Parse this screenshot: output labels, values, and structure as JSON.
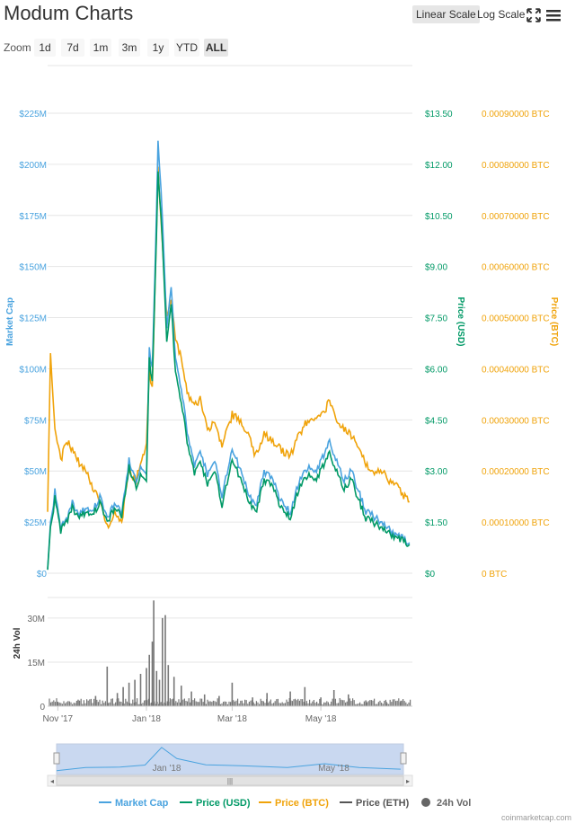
{
  "header": {
    "title": "Modum Charts",
    "linear_scale_label": "Linear Scale",
    "log_scale_label": "Log Scale",
    "selected_scale": "Linear Scale"
  },
  "zoom": {
    "label": "Zoom",
    "options": [
      "1d",
      "7d",
      "1m",
      "3m",
      "1y",
      "YTD",
      "ALL"
    ],
    "selected": "ALL"
  },
  "credit": "coinmarketcap.com",
  "colors": {
    "market_cap": "#4aa3df",
    "price_usd": "#009966",
    "price_btc": "#f0a30a",
    "price_eth": "#555555",
    "volume": "#777777",
    "grid": "#e6e6e6",
    "navigator_fill": "#c9d8f0"
  },
  "chart_data": [
    {
      "type": "line",
      "title": "",
      "x_type": "date",
      "xlim": [
        "2017-10-25",
        "2018-07-03"
      ],
      "x_tick_labels": [
        "Nov '17",
        "Jan '18",
        "Mar '18",
        "May '18"
      ],
      "x_ticks": [
        "2017-11-01",
        "2018-01-01",
        "2018-03-01",
        "2018-05-01"
      ],
      "grid": true,
      "legend": "bottom",
      "axes": {
        "market_cap": {
          "label": "Market Cap",
          "side": "left",
          "range": [
            0,
            225000000
          ],
          "tick_labels": [
            "$0",
            "$25M",
            "$50M",
            "$75M",
            "$100M",
            "$125M",
            "$150M",
            "$175M",
            "$200M",
            "$225M"
          ]
        },
        "price_usd": {
          "label": "Price (USD)",
          "side": "right",
          "range": [
            0,
            13.5
          ],
          "tick_labels": [
            "$0",
            "$1.50",
            "$3.00",
            "$4.50",
            "$6.00",
            "$7.50",
            "$9.00",
            "$10.50",
            "$12.00",
            "$13.50"
          ]
        },
        "price_btc": {
          "label": "Price (BTC)",
          "side": "right",
          "range": [
            0,
            0.0009
          ],
          "tick_labels": [
            "0 BTC",
            "0.00010000 BTC",
            "0.00020000 BTC",
            "0.00030000 BTC",
            "0.00040000 BTC",
            "0.00050000 BTC",
            "0.00060000 BTC",
            "0.00070000 BTC",
            "0.00080000 BTC",
            "0.00090000 BTC"
          ]
        }
      },
      "series": [
        {
          "name": "Market Cap",
          "axis": "market_cap",
          "x": [
            "2017-10-25",
            "2017-10-27",
            "2017-10-30",
            "2017-11-03",
            "2017-11-07",
            "2017-11-11",
            "2017-11-15",
            "2017-11-20",
            "2017-11-25",
            "2017-11-30",
            "2017-12-05",
            "2017-12-10",
            "2017-12-15",
            "2017-12-20",
            "2017-12-25",
            "2017-12-28",
            "2018-01-01",
            "2018-01-03",
            "2018-01-05",
            "2018-01-07",
            "2018-01-09",
            "2018-01-12",
            "2018-01-15",
            "2018-01-18",
            "2018-01-21",
            "2018-01-25",
            "2018-01-29",
            "2018-02-03",
            "2018-02-07",
            "2018-02-12",
            "2018-02-17",
            "2018-02-22",
            "2018-03-01",
            "2018-03-06",
            "2018-03-12",
            "2018-03-17",
            "2018-03-23",
            "2018-03-29",
            "2018-04-04",
            "2018-04-10",
            "2018-04-16",
            "2018-04-22",
            "2018-04-28",
            "2018-05-03",
            "2018-05-07",
            "2018-05-12",
            "2018-05-17",
            "2018-05-22",
            "2018-05-27",
            "2018-06-01",
            "2018-06-06",
            "2018-06-12",
            "2018-06-17",
            "2018-06-22",
            "2018-06-27",
            "2018-07-01"
          ],
          "values": [
            2000000,
            24000000,
            40000000,
            22000000,
            26000000,
            35000000,
            28000000,
            32000000,
            30000000,
            38000000,
            27000000,
            34000000,
            30000000,
            55000000,
            45000000,
            52000000,
            50000000,
            110000000,
            100000000,
            150000000,
            210000000,
            175000000,
            120000000,
            140000000,
            105000000,
            90000000,
            70000000,
            52000000,
            60000000,
            48000000,
            55000000,
            38000000,
            60000000,
            52000000,
            40000000,
            32000000,
            50000000,
            45000000,
            35000000,
            30000000,
            45000000,
            52000000,
            50000000,
            58000000,
            64000000,
            55000000,
            45000000,
            50000000,
            40000000,
            30000000,
            28000000,
            25000000,
            22000000,
            18000000,
            17000000,
            15000000
          ]
        },
        {
          "name": "Price (USD)",
          "axis": "price_usd",
          "x": [
            "2017-10-25",
            "2017-10-27",
            "2017-10-30",
            "2017-11-03",
            "2017-11-07",
            "2017-11-11",
            "2017-11-15",
            "2017-11-20",
            "2017-11-25",
            "2017-11-30",
            "2017-12-05",
            "2017-12-10",
            "2017-12-15",
            "2017-12-20",
            "2017-12-25",
            "2017-12-28",
            "2018-01-01",
            "2018-01-03",
            "2018-01-05",
            "2018-01-07",
            "2018-01-09",
            "2018-01-12",
            "2018-01-15",
            "2018-01-18",
            "2018-01-21",
            "2018-01-25",
            "2018-01-29",
            "2018-02-03",
            "2018-02-07",
            "2018-02-12",
            "2018-02-17",
            "2018-02-22",
            "2018-03-01",
            "2018-03-06",
            "2018-03-12",
            "2018-03-17",
            "2018-03-23",
            "2018-03-29",
            "2018-04-04",
            "2018-04-10",
            "2018-04-16",
            "2018-04-22",
            "2018-04-28",
            "2018-05-03",
            "2018-05-07",
            "2018-05-12",
            "2018-05-17",
            "2018-05-22",
            "2018-05-27",
            "2018-06-01",
            "2018-06-06",
            "2018-06-12",
            "2018-06-17",
            "2018-06-22",
            "2018-06-27",
            "2018-07-01"
          ],
          "values": [
            0.1,
            1.3,
            2.2,
            1.25,
            1.5,
            1.95,
            1.6,
            1.8,
            1.7,
            2.1,
            1.5,
            1.9,
            1.7,
            3.1,
            2.5,
            2.9,
            2.8,
            6.3,
            5.6,
            8.5,
            11.7,
            9.8,
            6.8,
            7.9,
            5.9,
            5.0,
            3.9,
            2.9,
            3.3,
            2.6,
            3.0,
            2.0,
            3.3,
            2.85,
            2.2,
            1.75,
            2.75,
            2.5,
            1.9,
            1.65,
            2.5,
            2.9,
            2.75,
            3.2,
            3.5,
            3.0,
            2.45,
            2.75,
            2.15,
            1.6,
            1.5,
            1.35,
            1.2,
            1.0,
            0.95,
            0.85
          ]
        },
        {
          "name": "Price (BTC)",
          "axis": "price_btc",
          "x": [
            "2017-10-25",
            "2017-10-27",
            "2017-10-30",
            "2017-11-03",
            "2017-11-07",
            "2017-11-11",
            "2017-11-15",
            "2017-11-20",
            "2017-11-25",
            "2017-11-30",
            "2017-12-05",
            "2017-12-10",
            "2017-12-15",
            "2017-12-20",
            "2017-12-25",
            "2017-12-28",
            "2018-01-01",
            "2018-01-03",
            "2018-01-05",
            "2018-01-07",
            "2018-01-09",
            "2018-01-12",
            "2018-01-15",
            "2018-01-18",
            "2018-01-21",
            "2018-01-25",
            "2018-01-29",
            "2018-02-03",
            "2018-02-07",
            "2018-02-12",
            "2018-02-17",
            "2018-02-22",
            "2018-03-01",
            "2018-03-06",
            "2018-03-12",
            "2018-03-17",
            "2018-03-23",
            "2018-03-29",
            "2018-04-04",
            "2018-04-10",
            "2018-04-16",
            "2018-04-22",
            "2018-04-28",
            "2018-05-03",
            "2018-05-07",
            "2018-05-12",
            "2018-05-17",
            "2018-05-22",
            "2018-05-27",
            "2018-06-01",
            "2018-06-06",
            "2018-06-12",
            "2018-06-17",
            "2018-06-22",
            "2018-06-27",
            "2018-07-01"
          ],
          "values": [
            0.00012,
            0.00043,
            0.00028,
            0.00022,
            0.00026,
            0.00024,
            0.00022,
            0.0002,
            0.00017,
            0.00014,
            9e-05,
            0.00012,
            0.0001,
            0.0002,
            0.00018,
            0.00022,
            0.00025,
            0.0004,
            0.00036,
            0.00058,
            0.00079,
            0.00065,
            0.0005,
            0.00054,
            0.00046,
            0.00042,
            0.00035,
            0.00033,
            0.00034,
            0.00028,
            0.0003,
            0.00025,
            0.00031,
            0.0003,
            0.00027,
            0.00023,
            0.00027,
            0.00026,
            0.00024,
            0.00023,
            0.00027,
            0.0003,
            0.0003,
            0.00031,
            0.00034,
            0.0003,
            0.00028,
            0.00027,
            0.00025,
            0.00021,
            0.0002,
            0.0002,
            0.00018,
            0.00017,
            0.00015,
            0.00014
          ]
        }
      ]
    },
    {
      "type": "bar",
      "title": "",
      "ylabel": "24h Vol",
      "ylim": [
        0,
        37000000
      ],
      "y_tick_labels": [
        "0",
        "15M",
        "30M"
      ],
      "x_type": "date",
      "xlim": [
        "2017-10-25",
        "2018-07-03"
      ],
      "x_tick_labels": [
        "Nov '17",
        "Jan '18",
        "Mar '18",
        "May '18"
      ],
      "series": [
        {
          "name": "24h Vol",
          "x": [
            "2017-11-01",
            "2017-11-15",
            "2017-11-27",
            "2017-12-05",
            "2017-12-12",
            "2017-12-16",
            "2017-12-20",
            "2017-12-24",
            "2017-12-28",
            "2018-01-01",
            "2018-01-03",
            "2018-01-05",
            "2018-01-06",
            "2018-01-08",
            "2018-01-10",
            "2018-01-12",
            "2018-01-14",
            "2018-01-16",
            "2018-01-20",
            "2018-01-25",
            "2018-02-01",
            "2018-02-10",
            "2018-02-20",
            "2018-03-01",
            "2018-03-15",
            "2018-03-25",
            "2018-04-10",
            "2018-04-20",
            "2018-05-01",
            "2018-05-10",
            "2018-05-20",
            "2018-06-01",
            "2018-06-15",
            "2018-06-25"
          ],
          "values": [
            1500000,
            2000000,
            3500000,
            13500000,
            4500000,
            6500000,
            8000000,
            9000000,
            11000000,
            13000000,
            17500000,
            22000000,
            36000000,
            12000000,
            9000000,
            30000000,
            31000000,
            14000000,
            10000000,
            7000000,
            5000000,
            4000000,
            3500000,
            8000000,
            3000000,
            4500000,
            5000000,
            6500000,
            3000000,
            5500000,
            4000000,
            2000000,
            1500000,
            1800000
          ]
        }
      ]
    },
    {
      "type": "area",
      "title": "",
      "x_type": "date",
      "xlim": [
        "2017-10-25",
        "2018-07-03"
      ],
      "x_tick_labels": [
        "Jan '18",
        "May '18"
      ],
      "x_ticks": [
        "2018-01-01",
        "2018-05-01"
      ],
      "series": [
        {
          "name": "Market Cap",
          "x": [
            "2017-10-25",
            "2017-11-15",
            "2017-12-10",
            "2017-12-28",
            "2018-01-09",
            "2018-01-20",
            "2018-02-10",
            "2018-03-10",
            "2018-04-10",
            "2018-05-07",
            "2018-06-01",
            "2018-07-01"
          ],
          "values": [
            2000000,
            30000000,
            34000000,
            52000000,
            210000000,
            110000000,
            55000000,
            45000000,
            30000000,
            64000000,
            30000000,
            15000000
          ]
        }
      ]
    }
  ],
  "legend": {
    "items": [
      {
        "label": "Market Cap",
        "color": "#4aa3df",
        "marker": "line"
      },
      {
        "label": "Price (USD)",
        "color": "#009966",
        "marker": "line"
      },
      {
        "label": "Price (BTC)",
        "color": "#f0a30a",
        "marker": "line"
      },
      {
        "label": "Price (ETH)",
        "color": "#555555",
        "marker": "line"
      },
      {
        "label": "24h Vol",
        "color": "#666666",
        "marker": "dot"
      }
    ]
  }
}
